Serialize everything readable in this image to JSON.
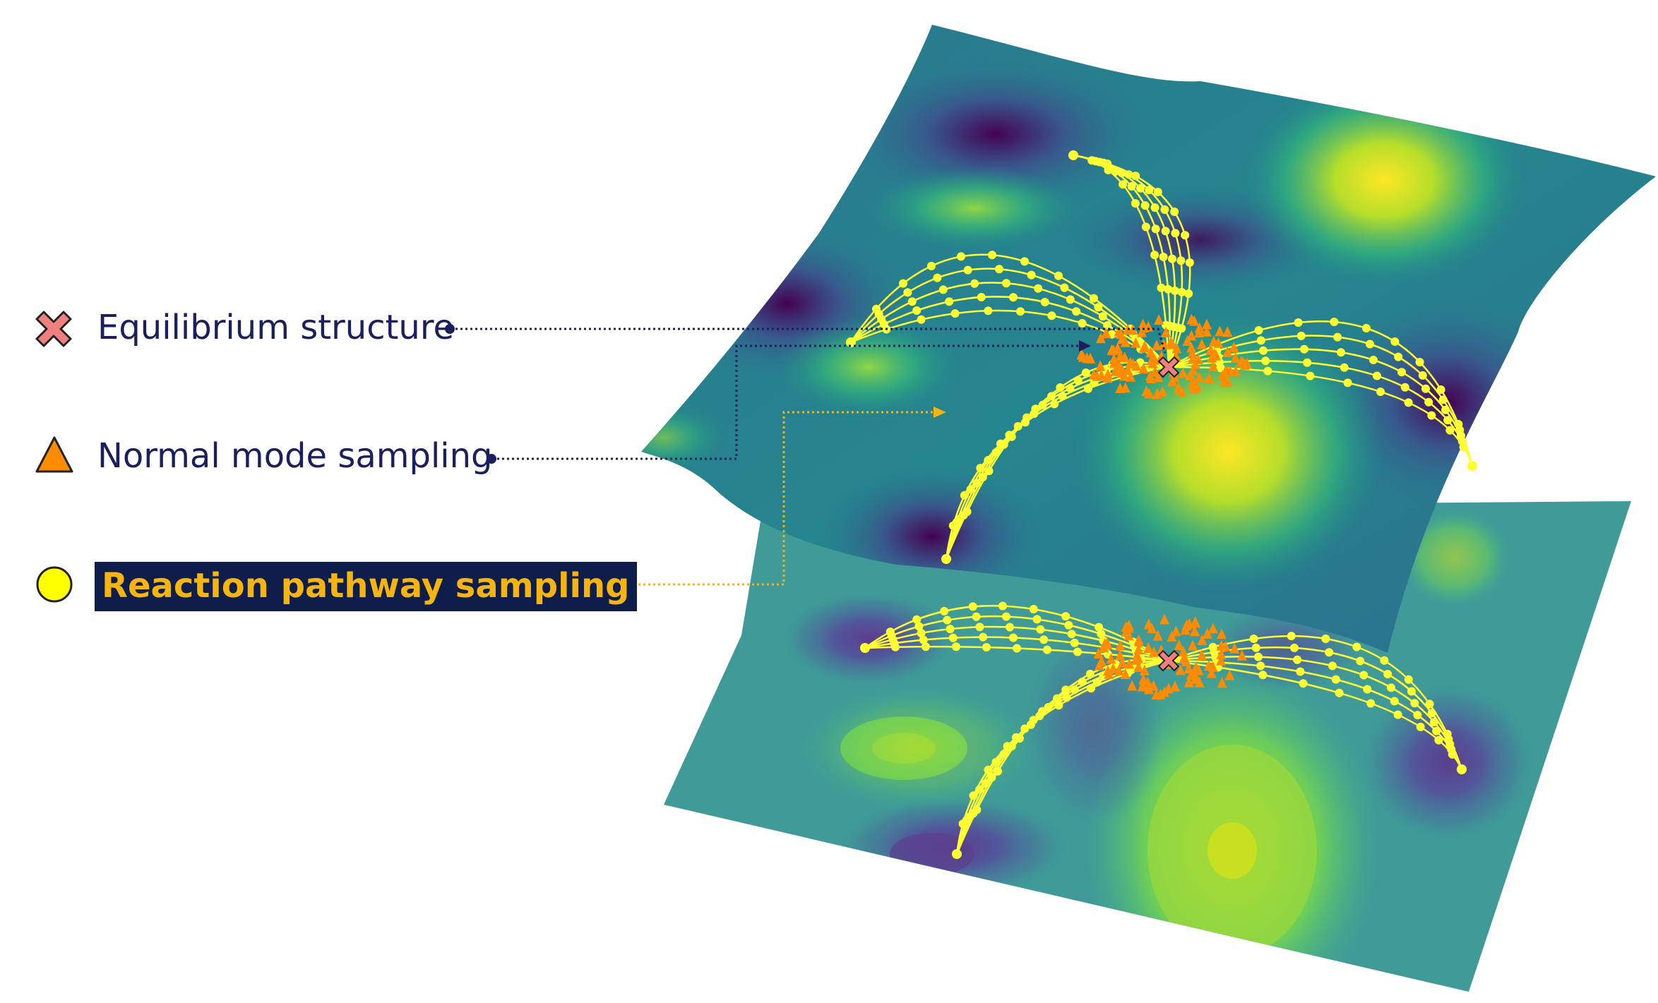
{
  "legend": [
    {
      "label": "Equilibrium structure",
      "marker": "x-cross-icon",
      "color": "#f08080",
      "highlight": false
    },
    {
      "label": "Normal mode sampling",
      "marker": "triangle-icon",
      "color": "#ff8c00",
      "highlight": false
    },
    {
      "label": "Reaction pathway sampling",
      "marker": "circle-icon",
      "color": "#ffff00",
      "highlight": true
    }
  ],
  "colors": {
    "surface_low": "#440154",
    "surface_mid": "#21918c",
    "surface_high": "#fde725",
    "path": "#ffff33",
    "normal_mode": "#ff8c00",
    "equilibrium": "#f08080",
    "legend_text": "#1b1f5c",
    "highlight_bg": "#0f1d4a",
    "highlight_text": "#f5b40f",
    "connector_dark": "#1b1f5c",
    "connector_gold": "#f5b40f"
  }
}
